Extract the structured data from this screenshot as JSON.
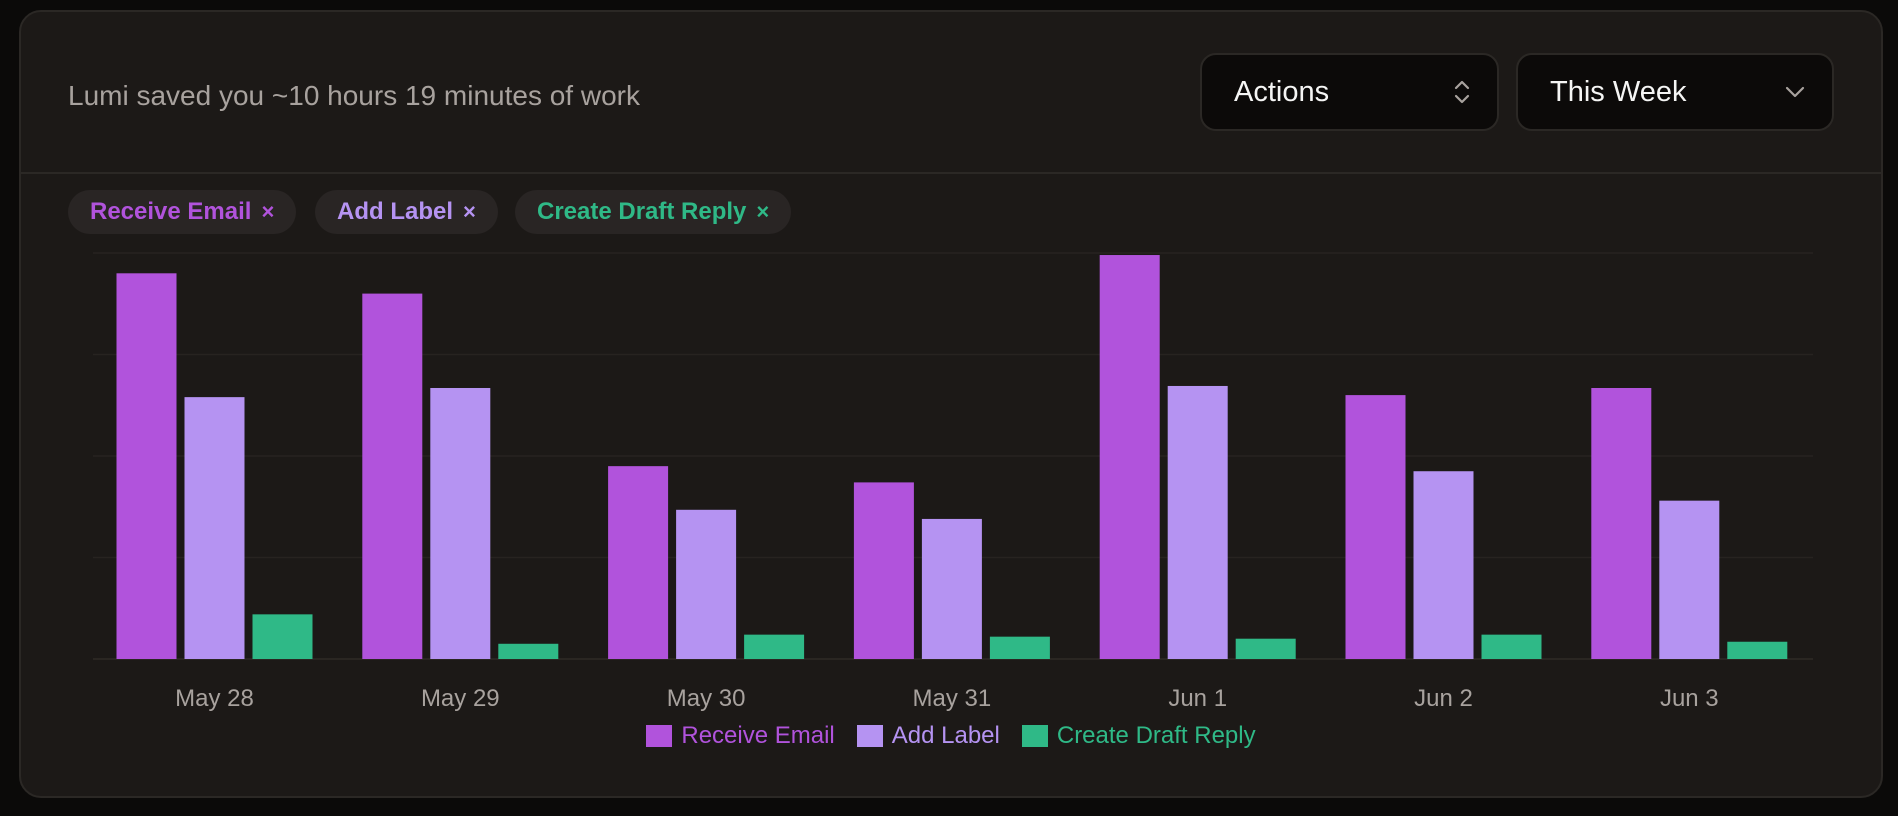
{
  "header": {
    "saved_text": "Lumi saved you ~10 hours 19 minutes of work",
    "actions_select": {
      "label": "Actions",
      "icon": "chevron-up-down-icon"
    },
    "range_select": {
      "label": "This Week",
      "icon": "chevron-down-icon"
    }
  },
  "filters": [
    {
      "label": "Receive Email",
      "color": "#b153dc",
      "remove": "×"
    },
    {
      "label": "Add Label",
      "color": "#b593f2",
      "remove": "×"
    },
    {
      "label": "Create Draft Reply",
      "color": "#2fb987",
      "remove": "×"
    }
  ],
  "chart_data": {
    "type": "bar",
    "categories": [
      "May 28",
      "May 29",
      "May 30",
      "May 31",
      "Jun 1",
      "Jun 2",
      "Jun 3"
    ],
    "series": [
      {
        "name": "Receive Email",
        "color": "#b153dc",
        "values": [
          38,
          36,
          19,
          17.4,
          39.8,
          26,
          26.7
        ]
      },
      {
        "name": "Add Label",
        "color": "#b593f2",
        "values": [
          25.8,
          26.7,
          14.7,
          13.8,
          26.9,
          18.5,
          15.6
        ]
      },
      {
        "name": "Create Draft Reply",
        "color": "#2fb987",
        "values": [
          4.4,
          1.5,
          2.4,
          2.2,
          2,
          2.4,
          1.7
        ]
      }
    ],
    "ylim": [
      0,
      40
    ],
    "grid": true,
    "legend": "bottom"
  }
}
